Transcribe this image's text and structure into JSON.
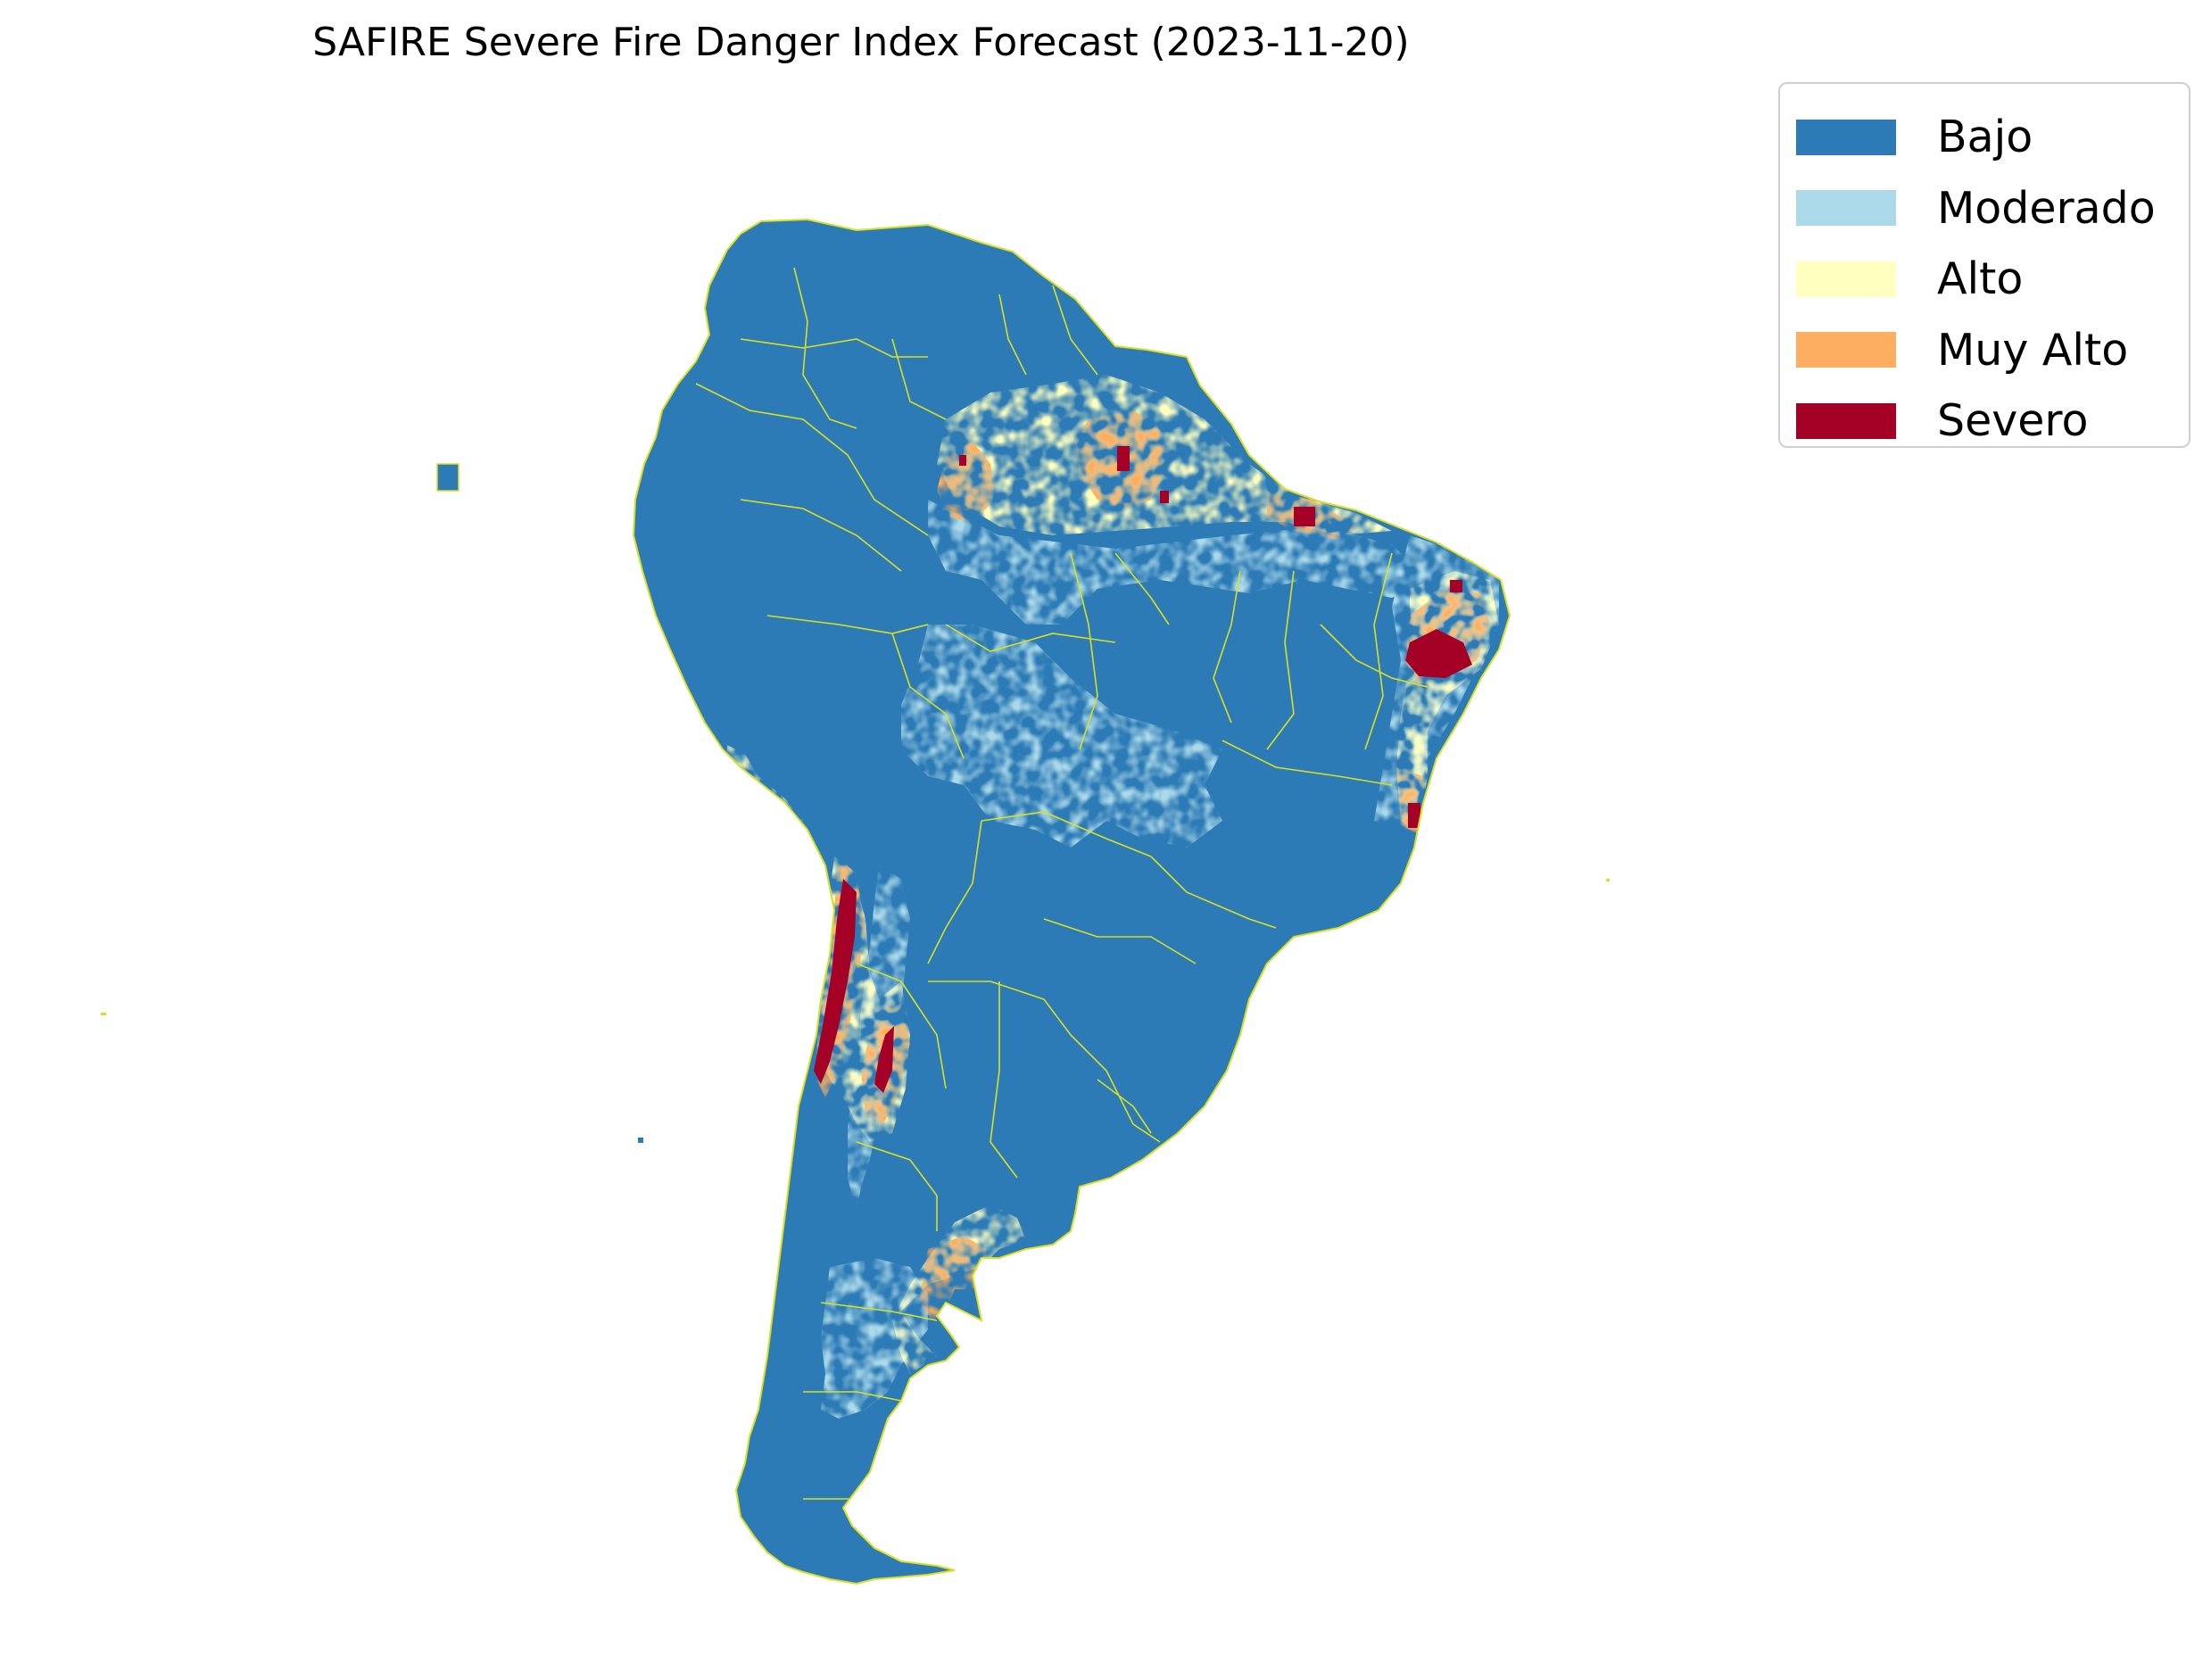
{
  "title": "SAFIRE Severe Fire Danger Index Forecast (2023-11-20)",
  "legend": {
    "items": [
      {
        "label": "Bajo",
        "color": "#2c7bb6"
      },
      {
        "label": "Moderado",
        "color": "#abd9e9"
      },
      {
        "label": "Alto",
        "color": "#ffffbf"
      },
      {
        "label": "Muy Alto",
        "color": "#fdae61"
      },
      {
        "label": "Severo",
        "color": "#a50026"
      }
    ]
  },
  "map": {
    "region": "South America",
    "boundary_color": "#d9e021",
    "background": "#ffffff"
  }
}
